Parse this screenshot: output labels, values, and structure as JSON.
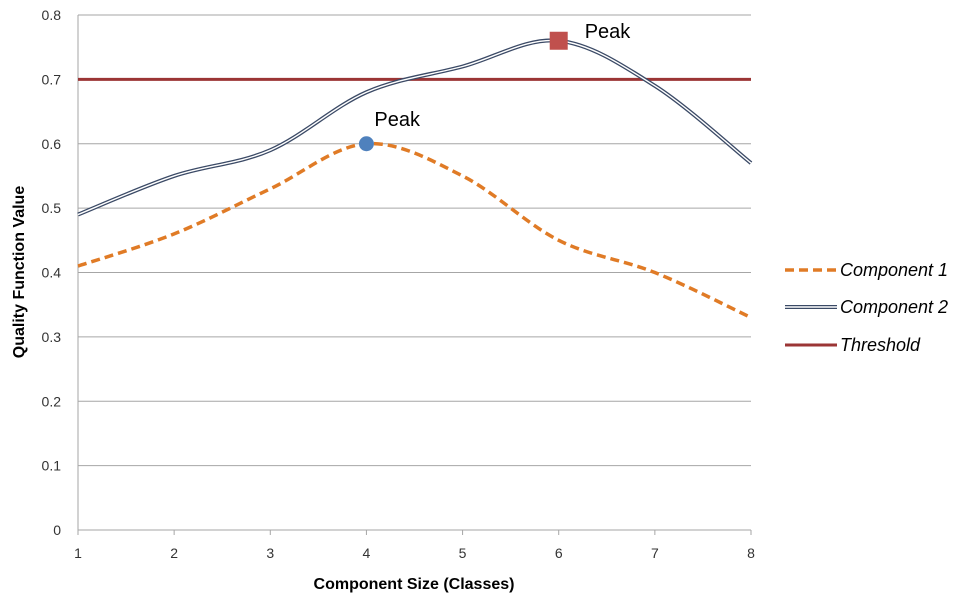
{
  "chart_data": {
    "type": "line",
    "xlabel": "Component Size (Classes)",
    "ylabel": "Quality Function Value",
    "xlim": [
      1,
      8
    ],
    "ylim": [
      0,
      0.8
    ],
    "x_ticks": [
      "1",
      "2",
      "3",
      "4",
      "5",
      "6",
      "7",
      "8"
    ],
    "y_ticks": [
      "0",
      "0.1",
      "0.2",
      "0.3",
      "0.4",
      "0.5",
      "0.6",
      "0.7",
      "0.8"
    ],
    "grid": true,
    "legend_position": "right",
    "series": [
      {
        "name": "Component 1",
        "style": "dashed",
        "color": "#E07B26",
        "x": [
          1,
          2,
          3,
          4,
          5,
          6,
          7,
          8
        ],
        "values": [
          0.41,
          0.46,
          0.53,
          0.6,
          0.55,
          0.45,
          0.4,
          0.33
        ]
      },
      {
        "name": "Component 2",
        "style": "double",
        "color": "#3B4A66",
        "x": [
          1,
          2,
          3,
          4,
          5,
          6,
          7,
          8
        ],
        "values": [
          0.49,
          0.55,
          0.59,
          0.68,
          0.72,
          0.76,
          0.69,
          0.57
        ]
      },
      {
        "name": "Threshold",
        "style": "solid",
        "color": "#9B3535",
        "x": [
          1,
          8
        ],
        "values": [
          0.7,
          0.7
        ]
      }
    ],
    "annotations": [
      {
        "text": "Peak",
        "x": 4,
        "y": 0.6,
        "marker": "circle",
        "color": "#4F81BD"
      },
      {
        "text": "Peak",
        "x": 6,
        "y": 0.76,
        "marker": "square",
        "color": "#C0504D"
      }
    ]
  }
}
